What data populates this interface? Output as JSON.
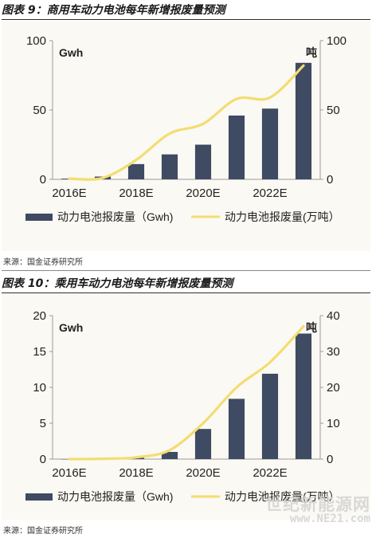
{
  "figures": [
    {
      "title": "图表 9：商用车动力电池每年新增报废量预测",
      "source": "来源：国金证券研究所",
      "unit_left": "Gwh",
      "unit_right": "吨",
      "legend": [
        "动力电池报废量（Gwh)",
        "动力电池报废量(万吨）"
      ]
    },
    {
      "title": "图表 10：乘用车动力电池每年新增报废量预测",
      "source": "来源：国金证券研究所",
      "unit_left": "Gwh",
      "unit_right": "吨",
      "legend": [
        "动力电池报废量（Gwh)",
        "动力电池报废量(万吨）"
      ]
    }
  ],
  "watermark": {
    "line1": "世纪新能源网",
    "line2": "www.NE21.com"
  },
  "chart_data": [
    {
      "type": "bar",
      "categories": [
        "2016E",
        "2017E",
        "2018E",
        "2019E",
        "2020E",
        "2021E",
        "2022E",
        "2023E"
      ],
      "x_tick_labels": [
        "2016E",
        "2018E",
        "2020E",
        "2022E"
      ],
      "series": [
        {
          "name": "动力电池报废量（Gwh)",
          "type": "bar",
          "axis": "left",
          "color": "#3f4a63",
          "values": [
            0.5,
            2,
            11,
            18,
            25,
            46,
            51,
            84
          ]
        },
        {
          "name": "动力电池报废量(万吨）",
          "type": "line",
          "axis": "right",
          "color": "#f2dd72",
          "values": [
            0.5,
            1,
            14,
            33,
            40,
            58,
            59,
            82
          ]
        }
      ],
      "ylim_left": [
        0,
        100
      ],
      "yticks_left": [
        0,
        50,
        100
      ],
      "ylim_right": [
        0,
        100
      ],
      "yticks_right": [
        0,
        50,
        100
      ],
      "grid": false,
      "legend_position": "bottom"
    },
    {
      "type": "bar",
      "categories": [
        "2016E",
        "2017E",
        "2018E",
        "2019E",
        "2020E",
        "2021E",
        "2022E",
        "2023E"
      ],
      "x_tick_labels": [
        "2016E",
        "2018E",
        "2020E",
        "2022E"
      ],
      "series": [
        {
          "name": "动力电池报废量（Gwh)",
          "type": "bar",
          "axis": "left",
          "color": "#3f4a63",
          "values": [
            0,
            0.05,
            0.2,
            1,
            4.2,
            8.4,
            11.9,
            17.5
          ]
        },
        {
          "name": "动力电池报废量(万吨）",
          "type": "line",
          "axis": "right",
          "color": "#f2dd72",
          "values": [
            0,
            0.1,
            0.5,
            2.5,
            10,
            20,
            27,
            37
          ]
        }
      ],
      "ylim_left": [
        0,
        20
      ],
      "yticks_left": [
        0,
        5,
        10,
        15,
        20
      ],
      "ylim_right": [
        0,
        40
      ],
      "yticks_right": [
        0,
        10,
        20,
        30,
        40
      ],
      "grid": false,
      "legend_position": "bottom"
    }
  ]
}
